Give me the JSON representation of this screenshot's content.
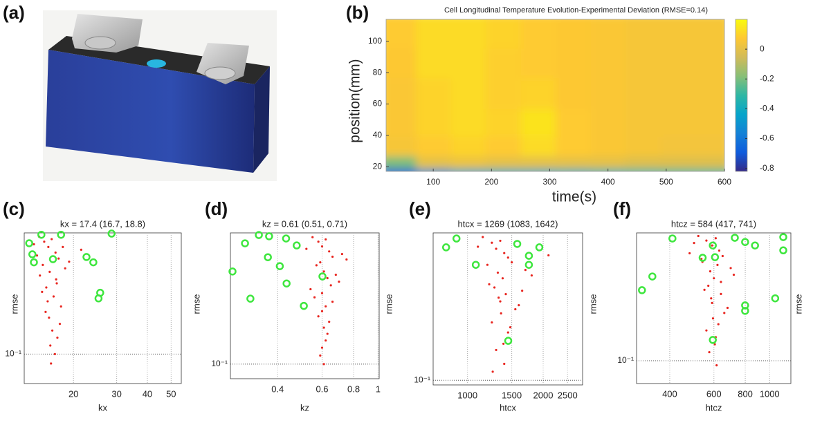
{
  "panel_labels": [
    "(a)",
    "(b)",
    "(c)",
    "(d)",
    "(e)",
    "(f)"
  ],
  "chart_data": [
    {
      "type": "heatmap",
      "title": "Cell Longitudinal Temperature Evolution-Experimental Deviation (RMSE=0.14)",
      "xlabel": "time(s)",
      "ylabel": "position(mm)",
      "x": [
        50,
        110,
        170,
        230,
        290,
        350,
        410,
        470,
        530,
        580
      ],
      "y": [
        19,
        25,
        35,
        50,
        70,
        90,
        108
      ],
      "values": [
        [
          -0.7,
          -0.5,
          -0.42,
          -0.4,
          -0.4,
          -0.38,
          -0.35,
          -0.32,
          -0.3,
          -0.3
        ],
        [
          -0.2,
          0,
          0.02,
          0,
          0,
          0,
          0,
          -0.02,
          -0.02,
          -0.02
        ],
        [
          0.05,
          0.08,
          0.1,
          0.08,
          0.12,
          0.08,
          0.06,
          0.05,
          0.04,
          0.04
        ],
        [
          0.06,
          0.1,
          0.12,
          0.1,
          0.14,
          0.08,
          0.06,
          0.05,
          0.05,
          0.05
        ],
        [
          0.06,
          0.1,
          0.12,
          0.09,
          0.1,
          0.07,
          0.06,
          0.05,
          0.05,
          0.05
        ],
        [
          0.07,
          0.12,
          0.12,
          0.09,
          0.08,
          0.07,
          0.06,
          0.05,
          0.05,
          0.05
        ],
        [
          0.08,
          0.12,
          0.12,
          0.1,
          0.08,
          0.07,
          0.06,
          0.05,
          0.05,
          0.05
        ]
      ],
      "xlim": [
        19,
        600
      ],
      "xticks": [
        100,
        200,
        300,
        400,
        500,
        600
      ],
      "ylim": [
        17,
        114
      ],
      "yticks": [
        20,
        40,
        60,
        80,
        100
      ],
      "clim": [
        -0.82,
        0.2
      ],
      "cticks": [
        0,
        -0.2,
        -0.4,
        -0.6,
        -0.8
      ],
      "colormap": [
        "#352a87",
        "#0f5cdd",
        "#1481d6",
        "#06a4ca",
        "#2eb7a4",
        "#87bf77",
        "#d1bb59",
        "#fec832",
        "#f9fb0e"
      ]
    },
    {
      "type": "scatter",
      "title": "kx = 17.4 (16.7, 18.8)",
      "xlabel": "kx",
      "ylabel": "rmse",
      "xscale": "log",
      "yscale": "log",
      "grid": true,
      "xlim": [
        12.6,
        55
      ],
      "xticks": [
        20,
        30,
        40,
        50
      ],
      "ylim": [
        0.072,
        0.386
      ],
      "yticks": [
        {
          "value": 0.1,
          "label": "10⁻¹"
        }
      ],
      "series": [
        {
          "color": "#e8251f",
          "marker": "dot",
          "x": [
            14.5,
            15.2,
            15.8,
            16.3,
            16.9,
            17.4,
            15.0,
            16.0,
            17.0,
            14.2,
            15.5,
            16.6,
            17.8,
            18.5,
            13.8,
            15.9,
            16.4,
            17.2,
            14.9,
            16.1,
            15.4,
            16.8,
            17.6,
            19.2,
            21.5,
            14.6,
            16.2,
            15.7,
            17.1,
            18.1
          ],
          "values": [
            0.37,
            0.35,
            0.33,
            0.36,
            0.31,
            0.29,
            0.27,
            0.25,
            0.23,
            0.3,
            0.21,
            0.19,
            0.17,
            0.26,
            0.34,
            0.15,
            0.13,
            0.12,
            0.2,
            0.11,
            0.16,
            0.1,
            0.14,
            0.28,
            0.32,
            0.24,
            0.09,
            0.18,
            0.22,
            0.33
          ]
        },
        {
          "color": "#3ee63e",
          "marker": "ring",
          "x": [
            13.2,
            13.6,
            13.8,
            14.8,
            17.8,
            16.5,
            28.6,
            22.6,
            24.1,
            25.7,
            25.3
          ],
          "values": [
            0.344,
            0.304,
            0.278,
            0.378,
            0.378,
            0.288,
            0.383,
            0.295,
            0.278,
            0.198,
            0.186
          ]
        }
      ]
    },
    {
      "type": "scatter",
      "title": "kz = 0.61 (0.51, 0.71)",
      "xlabel": "kz",
      "ylabel": "rmse",
      "xscale": "log",
      "yscale": "log",
      "grid": true,
      "xlim": [
        0.26,
        1.01
      ],
      "xticks": [
        0.4,
        0.6,
        0.8,
        1
      ],
      "ylim": [
        0.085,
        0.43
      ],
      "yticks": [
        {
          "value": 0.1,
          "label": "10⁻¹"
        }
      ],
      "series": [
        {
          "color": "#e8251f",
          "marker": "dot",
          "x": [
            0.55,
            0.58,
            0.6,
            0.62,
            0.64,
            0.66,
            0.59,
            0.61,
            0.63,
            0.57,
            0.65,
            0.6,
            0.62,
            0.68,
            0.52,
            0.58,
            0.61,
            0.63,
            0.56,
            0.6,
            0.64,
            0.59,
            0.62,
            0.7,
            0.75,
            0.54,
            0.61,
            0.66,
            0.6,
            0.72
          ],
          "values": [
            0.41,
            0.39,
            0.37,
            0.4,
            0.35,
            0.33,
            0.31,
            0.28,
            0.26,
            0.3,
            0.24,
            0.22,
            0.19,
            0.27,
            0.36,
            0.17,
            0.15,
            0.14,
            0.21,
            0.12,
            0.16,
            0.11,
            0.13,
            0.25,
            0.32,
            0.23,
            0.1,
            0.2,
            0.18,
            0.34
          ]
        },
        {
          "color": "#3ee63e",
          "marker": "ring",
          "x": [
            0.265,
            0.297,
            0.312,
            0.337,
            0.37,
            0.366,
            0.408,
            0.434,
            0.432,
            0.476,
            0.508,
            0.602
          ],
          "values": [
            0.28,
            0.383,
            0.207,
            0.42,
            0.414,
            0.328,
            0.297,
            0.245,
            0.404,
            0.374,
            0.191,
            0.265
          ]
        }
      ]
    },
    {
      "type": "scatter",
      "title": "htcx = 1269 (1083, 1642)",
      "xlabel": "htcx",
      "ylabel": "rmse",
      "xscale": "log",
      "yscale": "log",
      "grid": true,
      "xlim": [
        730,
        2870
      ],
      "xticks": [
        1000,
        1500,
        2000,
        2500
      ],
      "ylim": [
        0.095,
        0.513
      ],
      "yticks": [
        {
          "value": 0.1,
          "label": "10⁻¹"
        }
      ],
      "series": [
        {
          "color": "#e8251f",
          "marker": "dot",
          "x": [
            1150,
            1250,
            1300,
            1350,
            1400,
            1450,
            1200,
            1320,
            1380,
            1500,
            1280,
            1420,
            1600,
            1700,
            1100,
            1360,
            1250,
            1450,
            1330,
            1390,
            1550,
            1300,
            1480,
            1800,
            2100,
            1220,
            1400,
            1350,
            1650,
            1260
          ],
          "values": [
            0.49,
            0.46,
            0.43,
            0.47,
            0.41,
            0.39,
            0.36,
            0.33,
            0.31,
            0.37,
            0.28,
            0.26,
            0.23,
            0.34,
            0.44,
            0.21,
            0.19,
            0.17,
            0.25,
            0.15,
            0.22,
            0.14,
            0.18,
            0.32,
            0.4,
            0.29,
            0.12,
            0.24,
            0.27,
            0.11
          ]
        },
        {
          "color": "#3ee63e",
          "marker": "ring",
          "x": [
            822,
            904,
            1079,
            1577,
            1755,
            1755,
            1931,
            1452
          ],
          "values": [
            0.437,
            0.482,
            0.36,
            0.454,
            0.398,
            0.36,
            0.437,
            0.155
          ]
        }
      ]
    },
    {
      "type": "scatter",
      "title": "htcz = 584 (417, 741)",
      "xlabel": "htcz",
      "ylabel": "rmse",
      "xscale": "log",
      "yscale": "log",
      "grid": true,
      "xlim": [
        295,
        1216
      ],
      "xticks": [
        400,
        600,
        800,
        1000
      ],
      "ylim": [
        0.0776,
        0.414
      ],
      "yticks": [
        {
          "value": 0.1,
          "label": "10⁻¹"
        }
      ],
      "series": [
        {
          "color": "#e8251f",
          "marker": "dot",
          "x": [
            520,
            560,
            590,
            610,
            630,
            650,
            540,
            580,
            600,
            620,
            570,
            640,
            680,
            700,
            500,
            595,
            560,
            610,
            585,
            605,
            660,
            575,
            625,
            720,
            480,
            550,
            615,
            590,
            640,
            535
          ],
          "values": [
            0.4,
            0.38,
            0.36,
            0.39,
            0.34,
            0.32,
            0.3,
            0.27,
            0.25,
            0.29,
            0.23,
            0.21,
            0.18,
            0.28,
            0.37,
            0.16,
            0.14,
            0.13,
            0.2,
            0.12,
            0.17,
            0.11,
            0.15,
            0.26,
            0.33,
            0.22,
            0.095,
            0.19,
            0.24,
            0.31
          ]
        },
        {
          "color": "#3ee63e",
          "marker": "ring",
          "x": [
            310,
            341,
            410,
            541,
            594,
            606,
            727,
            799,
            875,
            799,
            799,
            1053,
            1134,
            1134,
            594
          ],
          "values": [
            0.219,
            0.255,
            0.389,
            0.314,
            0.36,
            0.316,
            0.392,
            0.374,
            0.36,
            0.185,
            0.174,
            0.2,
            0.395,
            0.341,
            0.126
          ]
        }
      ]
    }
  ]
}
